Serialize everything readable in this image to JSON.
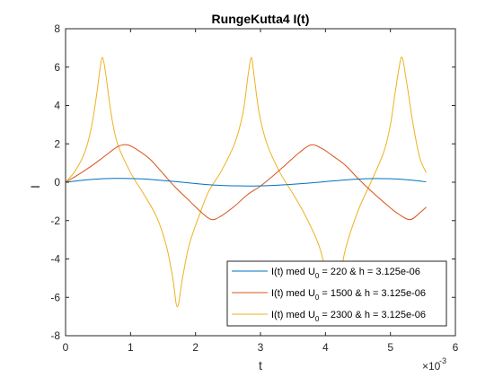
{
  "chart_data": {
    "type": "line",
    "title": "RungeKutta4 I(t)",
    "xlabel": "t",
    "ylabel": "I",
    "xlim": [
      0,
      6
    ],
    "ylim": [
      -8,
      8
    ],
    "x_multiplier": "×10",
    "x_multiplier_exp": "-3",
    "x_ticks": [
      "0",
      "1",
      "2",
      "3",
      "4",
      "5",
      "6"
    ],
    "y_ticks": [
      "-8",
      "-6",
      "-4",
      "-2",
      "0",
      "2",
      "4",
      "6",
      "8"
    ],
    "grid": false,
    "legend_placement": "bottom-right",
    "series": [
      {
        "name": "I(t) med U0 = 220 & h = 3.125e-06",
        "name_parts": [
          "I(t) med U",
          "0",
          " = 220 & h = 3.125e-06"
        ],
        "color": "#0072BD",
        "x": [
          0,
          0.3,
          0.6,
          0.9,
          1.2,
          1.4,
          1.7,
          2.0,
          2.3,
          2.6,
          2.85,
          3.1,
          3.4,
          3.7,
          4.0,
          4.3,
          4.55,
          4.85,
          5.15,
          5.4,
          5.55
        ],
        "y": [
          0,
          0.12,
          0.19,
          0.2,
          0.17,
          0.12,
          0.03,
          -0.07,
          -0.15,
          -0.19,
          -0.2,
          -0.18,
          -0.13,
          -0.06,
          0.03,
          0.12,
          0.17,
          0.19,
          0.16,
          0.08,
          0.02
        ]
      },
      {
        "name": "I(t) med U0 = 1500 & h = 3.125e-06",
        "name_parts": [
          "I(t) med U",
          "0",
          " = 1500 & h = 3.125e-06"
        ],
        "color": "#D95319",
        "x": [
          0,
          0.2,
          0.4,
          0.6,
          0.8,
          0.95,
          1.1,
          1.3,
          1.5,
          1.7,
          1.9,
          2.1,
          2.25,
          2.4,
          2.6,
          2.8,
          3.0,
          3.2,
          3.4,
          3.6,
          3.78,
          3.95,
          4.1,
          4.3,
          4.5,
          4.7,
          4.9,
          5.1,
          5.3,
          5.45,
          5.55
        ],
        "y": [
          0,
          0.4,
          0.85,
          1.35,
          1.85,
          1.95,
          1.7,
          1.2,
          0.45,
          -0.3,
          -0.95,
          -1.6,
          -1.95,
          -1.75,
          -1.25,
          -0.65,
          -0.2,
          0.35,
          0.95,
          1.55,
          1.95,
          1.75,
          1.4,
          0.9,
          0.2,
          -0.45,
          -1.05,
          -1.6,
          -1.95,
          -1.6,
          -1.3
        ]
      },
      {
        "name": "I(t) med U0 = 2300 & h = 3.125e-06",
        "name_parts": [
          "I(t) med U",
          "0",
          " = 2300 & h = 3.125e-06"
        ],
        "color": "#EDB120",
        "x": [
          0,
          0.15,
          0.3,
          0.4,
          0.48,
          0.53,
          0.57,
          0.62,
          0.7,
          0.8,
          1.0,
          1.2,
          1.4,
          1.55,
          1.65,
          1.72,
          1.8,
          1.9,
          2.05,
          2.2,
          2.4,
          2.6,
          2.73,
          2.81,
          2.86,
          2.9,
          2.98,
          3.1,
          3.3,
          3.5,
          3.7,
          3.9,
          4.0,
          4.1,
          4.15,
          4.2,
          4.3,
          4.5,
          4.7,
          4.9,
          5.0,
          5.07,
          5.13,
          5.18,
          5.25,
          5.35,
          5.45,
          5.55
        ],
        "y": [
          0,
          0.6,
          1.6,
          2.9,
          4.6,
          5.9,
          6.5,
          5.6,
          3.6,
          2.0,
          0.5,
          -0.6,
          -1.8,
          -3.3,
          -5.0,
          -6.5,
          -5.0,
          -3.3,
          -1.8,
          -0.5,
          0.6,
          2.0,
          3.6,
          5.6,
          6.5,
          5.6,
          3.6,
          2.0,
          0.5,
          -0.6,
          -1.8,
          -3.3,
          -4.6,
          -5.9,
          -6.5,
          -5.6,
          -3.6,
          -1.5,
          0.0,
          1.6,
          3.0,
          4.6,
          5.9,
          6.5,
          5.2,
          3.0,
          1.3,
          0.5
        ]
      }
    ]
  }
}
